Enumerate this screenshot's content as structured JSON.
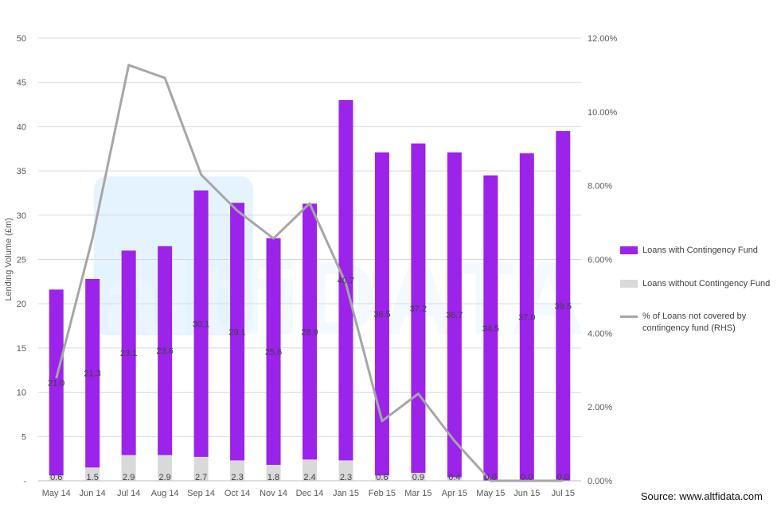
{
  "chart_data": {
    "type": "bar",
    "categories": [
      "May 14",
      "Jun 14",
      "Jul 14",
      "Aug 14",
      "Sep 14",
      "Oct 14",
      "Nov 14",
      "Dec 14",
      "Jan 15",
      "Feb 15",
      "Mar 15",
      "Apr 15",
      "May 15",
      "Jun 15",
      "Jul 15"
    ],
    "series": [
      {
        "name": "Loans with Contingency Fund",
        "kind": "stacked-bar",
        "color": "#9b23ea",
        "values": [
          21.0,
          21.3,
          23.1,
          23.6,
          30.1,
          29.1,
          25.6,
          28.9,
          40.7,
          36.5,
          37.2,
          36.7,
          34.5,
          37.0,
          39.5
        ]
      },
      {
        "name": "Loans without Contingency Fund",
        "kind": "stacked-bar",
        "color": "#d9d9d9",
        "values": [
          0.6,
          1.5,
          2.9,
          2.9,
          2.7,
          2.3,
          1.8,
          2.4,
          2.3,
          0.6,
          0.9,
          0.4,
          0.0,
          0.0,
          0.0
        ]
      },
      {
        "name": "% of Loans not covered by contingency fund (RHS)",
        "kind": "line",
        "axis": "right",
        "color": "#a6a6a6",
        "values": [
          2.78,
          6.58,
          11.27,
          10.92,
          8.3,
          7.32,
          6.57,
          7.52,
          5.35,
          1.62,
          2.36,
          1.08,
          0.0,
          0.0,
          0.0
        ]
      }
    ],
    "ylabel": "Lending Volume (£m)",
    "ylim": [
      0,
      50
    ],
    "y_ticks": [
      "-",
      "5",
      "10",
      "15",
      "20",
      "25",
      "30",
      "35",
      "40",
      "45",
      "50"
    ],
    "y2lim": [
      0,
      12
    ],
    "y2_ticks": [
      "0.00%",
      "2.00%",
      "4.00%",
      "6.00%",
      "8.00%",
      "10.00%",
      "12.00%"
    ],
    "grid": "horizontal",
    "legend_position": "right"
  },
  "source_text": "Source: www.altfidata.com",
  "watermark_text": "altfiDATA"
}
